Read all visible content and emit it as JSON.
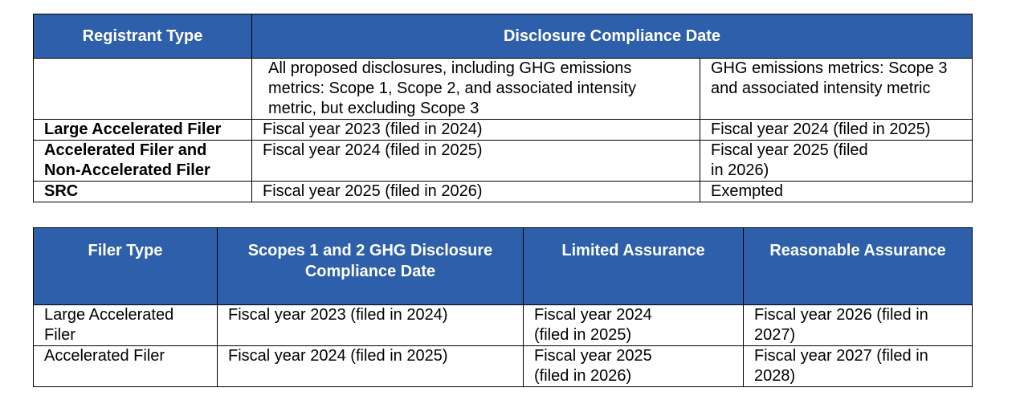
{
  "table1": {
    "headers": {
      "registrant_type": "Registrant Type",
      "disclosure_compliance_date": "Disclosure Compliance Date"
    },
    "subheaders": {
      "col2": "All proposed disclosures, including GHG emissions metrics: Scope 1, Scope 2, and associated intensity metric, but excluding Scope 3",
      "col3": "GHG emissions metrics: Scope 3 and associated intensity metric"
    },
    "rows": [
      {
        "type": "Large Accelerated Filer",
        "col2": "Fiscal year 2023 (filed in 2024)",
        "col3": "Fiscal year 2024 (filed in 2025)"
      },
      {
        "type": "Accelerated Filer and Non-Accelerated Filer",
        "col2": "Fiscal year 2024 (filed in 2025)",
        "col3": "Fiscal year 2025 (filed in 2026)"
      },
      {
        "type": "SRC",
        "col2": "Fiscal year 2025 (filed in 2026)",
        "col3": "Exempted"
      }
    ]
  },
  "table2": {
    "headers": {
      "filer_type": "Filer Type",
      "scopes_date": "Scopes 1 and 2 GHG Disclosure Compliance Date",
      "limited": "Limited Assurance",
      "reasonable": "Reasonable Assurance"
    },
    "rows": [
      {
        "type": "Large Accelerated Filer",
        "scopes": "Fiscal year 2023 (filed in 2024)",
        "limited": "Fiscal year 2024 (filed in 2025)",
        "reasonable": "Fiscal year 2026 (filed in 2027)"
      },
      {
        "type": "Accelerated Filer",
        "scopes": "Fiscal year 2024 (filed in 2025)",
        "limited": "Fiscal year 2025 (filed in 2026)",
        "reasonable": "Fiscal year 2027 (filed in 2028)"
      }
    ]
  },
  "colors": {
    "header_bg": "#2e5faa",
    "header_text": "#ffffff"
  }
}
